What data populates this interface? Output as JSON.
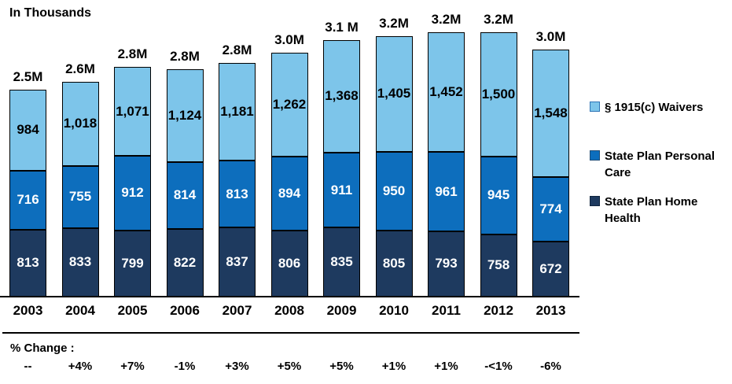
{
  "title": "In Thousands",
  "chart_data": {
    "type": "bar",
    "stacked": true,
    "title": "In Thousands",
    "categories": [
      "2003",
      "2004",
      "2005",
      "2006",
      "2007",
      "2008",
      "2009",
      "2010",
      "2011",
      "2012",
      "2013"
    ],
    "series": [
      {
        "name": "State Plan Home Health",
        "color": "#1E3A5F",
        "label_color": "#FFFFFF",
        "values": [
          813,
          833,
          799,
          822,
          837,
          806,
          835,
          805,
          793,
          758,
          672
        ]
      },
      {
        "name": "State Plan Personal Care",
        "color": "#0D6EBD",
        "label_color": "#FFFFFF",
        "values": [
          716,
          755,
          912,
          814,
          813,
          894,
          911,
          950,
          961,
          945,
          774
        ]
      },
      {
        "name": "§ 1915(c) Waivers",
        "color": "#7DC5EA",
        "label_color": "#000000",
        "values": [
          984,
          1018,
          1071,
          1124,
          1181,
          1262,
          1368,
          1405,
          1452,
          1500,
          1548
        ]
      }
    ],
    "stack_order": "bottom-to-top",
    "totals": [
      "2.5M",
      "2.6M",
      "2.8M",
      "2.8M",
      "2.8M",
      "3.0M",
      "3.1 M",
      "3.2M",
      "3.2M",
      "3.2M",
      "3.0M"
    ],
    "pct_change_label": "% Change :",
    "pct_change": [
      "--",
      "+4%",
      "+7%",
      "-1%",
      "+3%",
      "+5%",
      "+5%",
      "+1%",
      "+1%",
      "-<1%",
      "-6%"
    ],
    "legend": [
      {
        "label": "§ 1915(c) Waivers",
        "color": "#7DC5EA",
        "border": "#2E75B6"
      },
      {
        "label": "State Plan Personal Care",
        "color": "#0D6EBD",
        "border": "#1F4E79"
      },
      {
        "label": "State Plan Home Health",
        "color": "#1E3A5F",
        "border": "#0F243E"
      }
    ],
    "legend_position": "right",
    "grid": false,
    "ylim": [
      0,
      3206
    ]
  }
}
